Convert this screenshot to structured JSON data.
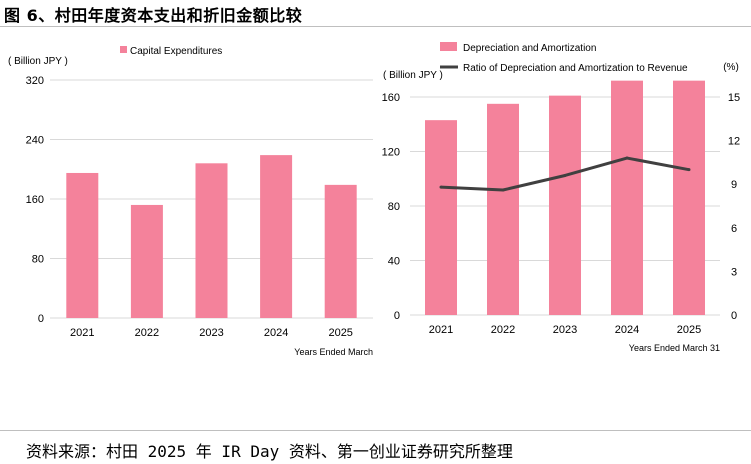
{
  "title": "图 6、村田年度资本支出和折旧金额比较",
  "source": "资料来源：村田 2025 年 IR Day 资料、第一创业证券研究所整理",
  "colors": {
    "bar": "#f4829b",
    "line": "#404040",
    "grid": "#d9d9d9"
  },
  "chart_data": [
    {
      "type": "bar",
      "categories": [
        "2021",
        "2022",
        "2023",
        "2024",
        "2025"
      ],
      "series": [
        {
          "name": "Capital Expenditures",
          "values": [
            195,
            152,
            208,
            219,
            179
          ]
        }
      ],
      "ylabel": "( Billion JPY )",
      "xlabel": "Years Ended March",
      "ylim": [
        0,
        320
      ],
      "yticks": [
        "0",
        "80",
        "160",
        "240",
        "320"
      ],
      "grid": true,
      "legend": "top-left"
    },
    {
      "type": "bar+line",
      "categories": [
        "2021",
        "2022",
        "2023",
        "2024",
        "2025"
      ],
      "series": [
        {
          "name": "Depreciation and Amortization",
          "axis": "left",
          "values": [
            143,
            155,
            161,
            172,
            172
          ]
        },
        {
          "name": "Ratio of Depreciation and Amortization to Revenue",
          "axis": "right",
          "values": [
            8.8,
            8.6,
            9.6,
            10.8,
            10.0
          ]
        }
      ],
      "ylabel": "( Billion JPY )",
      "y2label": "(%)",
      "xlabel": "Years Ended March 31",
      "ylim": [
        0,
        160
      ],
      "yticks": [
        "0",
        "40",
        "80",
        "120",
        "160"
      ],
      "y2lim": [
        0,
        15
      ],
      "y2ticks": [
        "0",
        "3",
        "6",
        "9",
        "12",
        "15"
      ],
      "grid": true,
      "legend": "top-left"
    }
  ]
}
